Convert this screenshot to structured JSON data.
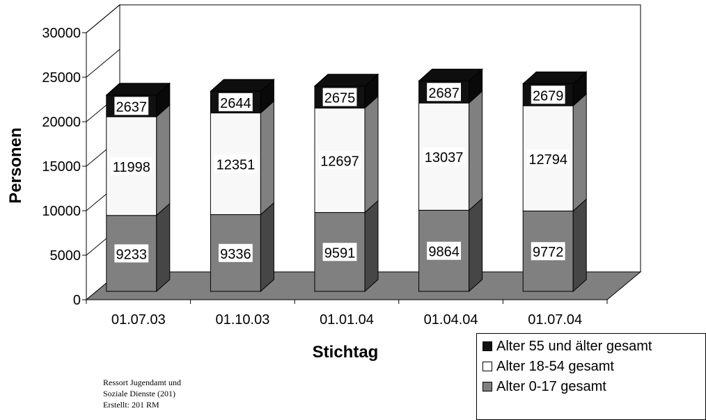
{
  "chart_data": {
    "type": "bar",
    "stacked": true,
    "three_d": true,
    "categories": [
      "01.07.03",
      "01.10.03",
      "01.01.04",
      "01.04.04",
      "01.07.04"
    ],
    "series": [
      {
        "name": "Alter 0-17 gesamt",
        "values": [
          9233,
          9336,
          9591,
          9864,
          9772
        ],
        "color": "#808080"
      },
      {
        "name": "Alter 18-54 gesamt",
        "values": [
          11998,
          12351,
          12697,
          13037,
          12794
        ],
        "color": "#f8f8f8"
      },
      {
        "name": "Alter 55 und älter gesamt",
        "values": [
          2637,
          2644,
          2675,
          2687,
          2679
        ],
        "color": "#111111"
      }
    ],
    "xlabel": "Stichtag",
    "ylabel": "Personen",
    "ylim": [
      0,
      30000
    ],
    "yticks": [
      0,
      5000,
      10000,
      15000,
      20000,
      25000,
      30000
    ],
    "legend_position": "bottom-right",
    "legend_order": [
      "Alter 55 und älter gesamt",
      "Alter 18-54 gesamt",
      "Alter 0-17 gesamt"
    ]
  },
  "credit": {
    "lines": [
      "Ressort Jugendamt und",
      "Soziale Dienste (201)",
      "Erstellt: 201 RM"
    ]
  }
}
